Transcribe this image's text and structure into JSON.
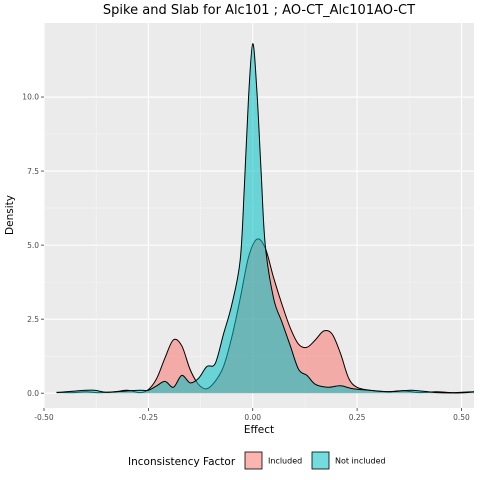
{
  "chart_data": {
    "type": "area",
    "title": "Spike and Slab for Alc101 ; AO-CT_Alc101AO-CT",
    "xlabel": "Effect",
    "ylabel": "Density",
    "xlim": [
      -0.5,
      0.53
    ],
    "ylim": [
      -0.5,
      12.5
    ],
    "x_ticks": [
      -0.5,
      -0.25,
      0.0,
      0.25,
      0.5
    ],
    "x_tick_labels": [
      "-0.50",
      "-0.25",
      "0.00",
      "0.25",
      "0.50"
    ],
    "y_ticks": [
      0.0,
      2.5,
      5.0,
      7.5,
      10.0
    ],
    "y_tick_labels": [
      "0.0",
      "2.5",
      "5.0",
      "7.5",
      "10.0"
    ],
    "grid": true,
    "legend_position": "bottom",
    "legend_title": "Inconsistency Factor",
    "series": [
      {
        "name": "Included",
        "color": "#F8766D",
        "x": [
          -0.47,
          -0.43,
          -0.4,
          -0.37,
          -0.33,
          -0.3,
          -0.27,
          -0.25,
          -0.23,
          -0.21,
          -0.19,
          -0.17,
          -0.15,
          -0.13,
          -0.11,
          -0.09,
          -0.07,
          -0.05,
          -0.03,
          -0.01,
          0.01,
          0.03,
          0.05,
          0.07,
          0.09,
          0.11,
          0.13,
          0.15,
          0.17,
          0.19,
          0.21,
          0.23,
          0.25,
          0.28,
          0.32,
          0.36,
          0.4,
          0.44,
          0.48,
          0.53
        ],
        "y": [
          0.03,
          0.02,
          0.05,
          0.02,
          0.05,
          0.1,
          0.02,
          0.12,
          0.5,
          1.2,
          1.8,
          1.6,
          0.8,
          0.3,
          0.15,
          0.4,
          0.9,
          1.9,
          3.2,
          4.6,
          5.2,
          4.9,
          3.9,
          3.0,
          2.2,
          1.65,
          1.55,
          1.8,
          2.1,
          2.0,
          1.35,
          0.5,
          0.2,
          0.1,
          0.05,
          0.08,
          0.02,
          0.05,
          0.02,
          0.05
        ]
      },
      {
        "name": "Not included",
        "color": "#00BFC4",
        "x": [
          -0.47,
          -0.42,
          -0.38,
          -0.35,
          -0.3,
          -0.27,
          -0.25,
          -0.23,
          -0.21,
          -0.19,
          -0.17,
          -0.15,
          -0.13,
          -0.11,
          -0.09,
          -0.07,
          -0.05,
          -0.03,
          -0.02,
          -0.01,
          0.0,
          0.01,
          0.02,
          0.03,
          0.05,
          0.07,
          0.09,
          0.11,
          0.13,
          0.15,
          0.18,
          0.21,
          0.24,
          0.28,
          0.33,
          0.38,
          0.44,
          0.5,
          0.53
        ],
        "y": [
          0.02,
          0.08,
          0.1,
          0.03,
          0.08,
          0.1,
          0.1,
          0.25,
          0.4,
          0.2,
          0.6,
          0.35,
          0.5,
          0.9,
          1.0,
          2.0,
          3.0,
          4.5,
          7.0,
          10.0,
          11.8,
          10.2,
          7.5,
          5.0,
          3.2,
          2.4,
          1.6,
          0.8,
          0.6,
          0.3,
          0.2,
          0.25,
          0.15,
          0.1,
          0.05,
          0.1,
          0.02,
          0.01,
          0.05
        ]
      }
    ]
  }
}
